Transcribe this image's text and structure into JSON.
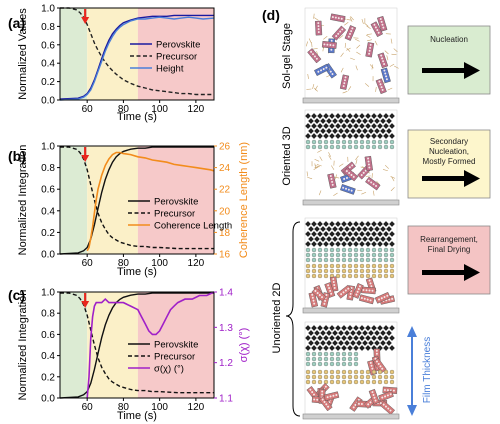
{
  "panel_labels": {
    "a": "(a)",
    "b": "(b)",
    "c": "(c)",
    "d": "(d)"
  },
  "colors": {
    "stage_green": "#dcebd3",
    "stage_yellow": "#fbf0c8",
    "stage_pink": "#f6c9c9",
    "box_green": "#d9ecd0",
    "box_yellow": "#fdf6cc",
    "box_pink": "#f4c4c4",
    "orange": "#f28c1c",
    "purple": "#a020c8",
    "blue": "#4a7fd9",
    "red_arrow": "#e8261d"
  },
  "diagram": {
    "stage_labels": [
      "Sol-gel Stage",
      "Oriented 3D",
      "Unoriented 2D"
    ],
    "stage_boxes": [
      {
        "text": [
          "Nucleation"
        ],
        "color": "green"
      },
      {
        "text": [
          "Secondary",
          "Nucleation,",
          "Mostly Formed"
        ],
        "color": "yellow"
      },
      {
        "text": [
          "Rearrangement,",
          "Final Drying"
        ],
        "color": "pink"
      }
    ],
    "film_thickness_label": "Film Thickness"
  },
  "chart_data": [
    {
      "id": "a",
      "type": "line",
      "xlabel": "Time (s)",
      "ylabel": "Normalized Values",
      "xlim": [
        45,
        130
      ],
      "ylim": [
        0,
        1
      ],
      "xticks": [
        60,
        80,
        100,
        120
      ],
      "yticks": [
        0.0,
        0.2,
        0.4,
        0.6,
        0.8,
        1.0
      ],
      "stages": [
        [
          45,
          60
        ],
        [
          60,
          88
        ],
        [
          88,
          130
        ]
      ],
      "marker_time": 60,
      "legend_position": "right",
      "series": [
        {
          "name": "Perovskite",
          "style": "solid",
          "color": "#1a1aa0",
          "x": [
            45,
            55,
            58,
            60,
            62,
            64,
            66,
            68,
            70,
            72,
            74,
            76,
            78,
            80,
            84,
            88,
            92,
            96,
            100,
            104,
            108,
            112,
            116,
            120,
            124,
            130
          ],
          "y": [
            0.01,
            0.02,
            0.04,
            0.07,
            0.13,
            0.22,
            0.33,
            0.45,
            0.56,
            0.65,
            0.72,
            0.77,
            0.81,
            0.84,
            0.87,
            0.89,
            0.9,
            0.91,
            0.91,
            0.91,
            0.92,
            0.92,
            0.92,
            0.92,
            0.92,
            0.92
          ]
        },
        {
          "name": "Precursor",
          "style": "dashed",
          "color": "#222222",
          "x": [
            45,
            50,
            54,
            56,
            58,
            60,
            62,
            64,
            66,
            68,
            70,
            72,
            74,
            76,
            78,
            80,
            84,
            88,
            92,
            96,
            100,
            104,
            108,
            112,
            116,
            120,
            124,
            130
          ],
          "y": [
            1.0,
            1.0,
            0.98,
            0.95,
            0.9,
            0.82,
            0.72,
            0.62,
            0.54,
            0.47,
            0.41,
            0.36,
            0.32,
            0.28,
            0.25,
            0.22,
            0.18,
            0.15,
            0.13,
            0.11,
            0.1,
            0.09,
            0.08,
            0.07,
            0.07,
            0.06,
            0.06,
            0.06
          ]
        },
        {
          "name": "Height",
          "style": "solid",
          "color": "#4a7fd9",
          "x": [
            45,
            55,
            58,
            60,
            62,
            64,
            66,
            68,
            70,
            72,
            74,
            76,
            78,
            80,
            84,
            88,
            92,
            96,
            100,
            104,
            108,
            112,
            116,
            120,
            124,
            130
          ],
          "y": [
            0.0,
            0.01,
            0.03,
            0.06,
            0.11,
            0.2,
            0.31,
            0.42,
            0.53,
            0.62,
            0.69,
            0.75,
            0.79,
            0.82,
            0.86,
            0.88,
            0.88,
            0.89,
            0.9,
            0.89,
            0.88,
            0.89,
            0.9,
            0.89,
            0.88,
            0.89
          ]
        }
      ]
    },
    {
      "id": "b",
      "type": "line",
      "xlabel": "Time (s)",
      "ylabel": "Normalized Integration",
      "y2label": "Coherence Length (nm)",
      "xlim": [
        45,
        130
      ],
      "ylim": [
        0,
        1
      ],
      "y2lim": [
        16,
        26
      ],
      "xticks": [
        60,
        80,
        100,
        120
      ],
      "yticks": [
        0.0,
        0.2,
        0.4,
        0.6,
        0.8,
        1.0
      ],
      "y2ticks": [
        16,
        18,
        20,
        22,
        24,
        26
      ],
      "stages": [
        [
          45,
          60
        ],
        [
          60,
          88
        ],
        [
          88,
          130
        ]
      ],
      "marker_time": 60,
      "legend_position": "lower-right",
      "series": [
        {
          "name": "Perovskite",
          "style": "solid",
          "color": "#111111",
          "axis": "left",
          "x": [
            45,
            55,
            58,
            60,
            62,
            64,
            66,
            68,
            70,
            72,
            74,
            76,
            78,
            80,
            84,
            88,
            92,
            96,
            100,
            110,
            120,
            130
          ],
          "y": [
            0.0,
            0.01,
            0.03,
            0.06,
            0.14,
            0.27,
            0.42,
            0.57,
            0.69,
            0.78,
            0.85,
            0.9,
            0.93,
            0.95,
            0.97,
            0.98,
            0.98,
            0.99,
            0.99,
            0.99,
            0.99,
            0.99
          ]
        },
        {
          "name": "Precursor",
          "style": "dashed",
          "color": "#111111",
          "axis": "left",
          "x": [
            45,
            50,
            54,
            56,
            58,
            60,
            62,
            64,
            66,
            68,
            70,
            72,
            74,
            76,
            78,
            80,
            84,
            88,
            92,
            96,
            100,
            110,
            120,
            130
          ],
          "y": [
            0.99,
            0.99,
            0.97,
            0.94,
            0.88,
            0.78,
            0.64,
            0.5,
            0.38,
            0.29,
            0.23,
            0.18,
            0.15,
            0.13,
            0.11,
            0.1,
            0.08,
            0.07,
            0.07,
            0.06,
            0.06,
            0.05,
            0.05,
            0.05
          ]
        },
        {
          "name": "Coherence Length",
          "style": "solid",
          "color": "#f28c1c",
          "axis": "right",
          "x": [
            60,
            61,
            62,
            63,
            64,
            65,
            66,
            68,
            70,
            72,
            74,
            76,
            78,
            80,
            84,
            88,
            92,
            96,
            100,
            104,
            108,
            112,
            116,
            120,
            124,
            128,
            130
          ],
          "y": [
            16.3,
            16.6,
            17.5,
            18.5,
            19.8,
            21,
            22,
            23.3,
            24.2,
            24.8,
            25.2,
            25.4,
            25.4,
            25.3,
            25.2,
            25.0,
            24.9,
            24.7,
            24.6,
            24.5,
            24.3,
            24.2,
            24.1,
            24.0,
            23.9,
            23.8,
            23.7
          ]
        }
      ]
    },
    {
      "id": "c",
      "type": "line",
      "xlabel": "Time (s)",
      "ylabel": "Normalized Integration",
      "y2label": "σ(χ) (°)",
      "xlim": [
        45,
        130
      ],
      "ylim": [
        0,
        1
      ],
      "y2lim": [
        1.1,
        1.4
      ],
      "xticks": [
        60,
        80,
        100,
        120
      ],
      "yticks": [
        0.0,
        0.2,
        0.4,
        0.6,
        0.8,
        1.0
      ],
      "y2ticks": [
        1.1,
        1.2,
        1.3,
        1.4
      ],
      "stages": [
        [
          45,
          60
        ],
        [
          60,
          88
        ],
        [
          88,
          130
        ]
      ],
      "marker_time": 60,
      "legend_position": "lower-right",
      "series": [
        {
          "name": "Perovskite",
          "style": "solid",
          "color": "#111111",
          "axis": "left",
          "x": [
            45,
            55,
            58,
            60,
            62,
            64,
            66,
            68,
            70,
            72,
            74,
            76,
            78,
            80,
            84,
            88,
            92,
            96,
            100,
            110,
            120,
            130
          ],
          "y": [
            0.0,
            0.01,
            0.03,
            0.06,
            0.14,
            0.27,
            0.42,
            0.57,
            0.69,
            0.78,
            0.85,
            0.9,
            0.93,
            0.95,
            0.97,
            0.98,
            0.98,
            0.99,
            0.99,
            0.99,
            0.99,
            0.99
          ]
        },
        {
          "name": "Precursor",
          "style": "dashed",
          "color": "#111111",
          "axis": "left",
          "x": [
            45,
            50,
            54,
            56,
            58,
            60,
            62,
            64,
            66,
            68,
            70,
            72,
            74,
            76,
            78,
            80,
            84,
            88,
            92,
            96,
            100,
            110,
            120,
            130
          ],
          "y": [
            0.99,
            0.99,
            0.97,
            0.94,
            0.88,
            0.78,
            0.64,
            0.5,
            0.38,
            0.29,
            0.23,
            0.18,
            0.15,
            0.13,
            0.11,
            0.1,
            0.08,
            0.07,
            0.07,
            0.06,
            0.06,
            0.05,
            0.05,
            0.05
          ]
        },
        {
          "name": "σ(χ) (°)",
          "style": "solid",
          "color": "#a020c8",
          "axis": "right",
          "x": [
            60,
            61,
            62,
            63,
            64,
            65,
            66,
            68,
            70,
            72,
            74,
            76,
            78,
            80,
            84,
            88,
            90,
            92,
            94,
            96,
            98,
            100,
            102,
            104,
            106,
            108,
            110,
            114,
            118,
            122,
            126,
            130
          ],
          "y": [
            1.1,
            1.16,
            1.27,
            1.33,
            1.36,
            1.37,
            1.37,
            1.37,
            1.38,
            1.37,
            1.37,
            1.37,
            1.37,
            1.37,
            1.36,
            1.35,
            1.33,
            1.31,
            1.29,
            1.28,
            1.28,
            1.29,
            1.31,
            1.33,
            1.35,
            1.36,
            1.37,
            1.38,
            1.38,
            1.39,
            1.39,
            1.4
          ]
        }
      ]
    }
  ]
}
